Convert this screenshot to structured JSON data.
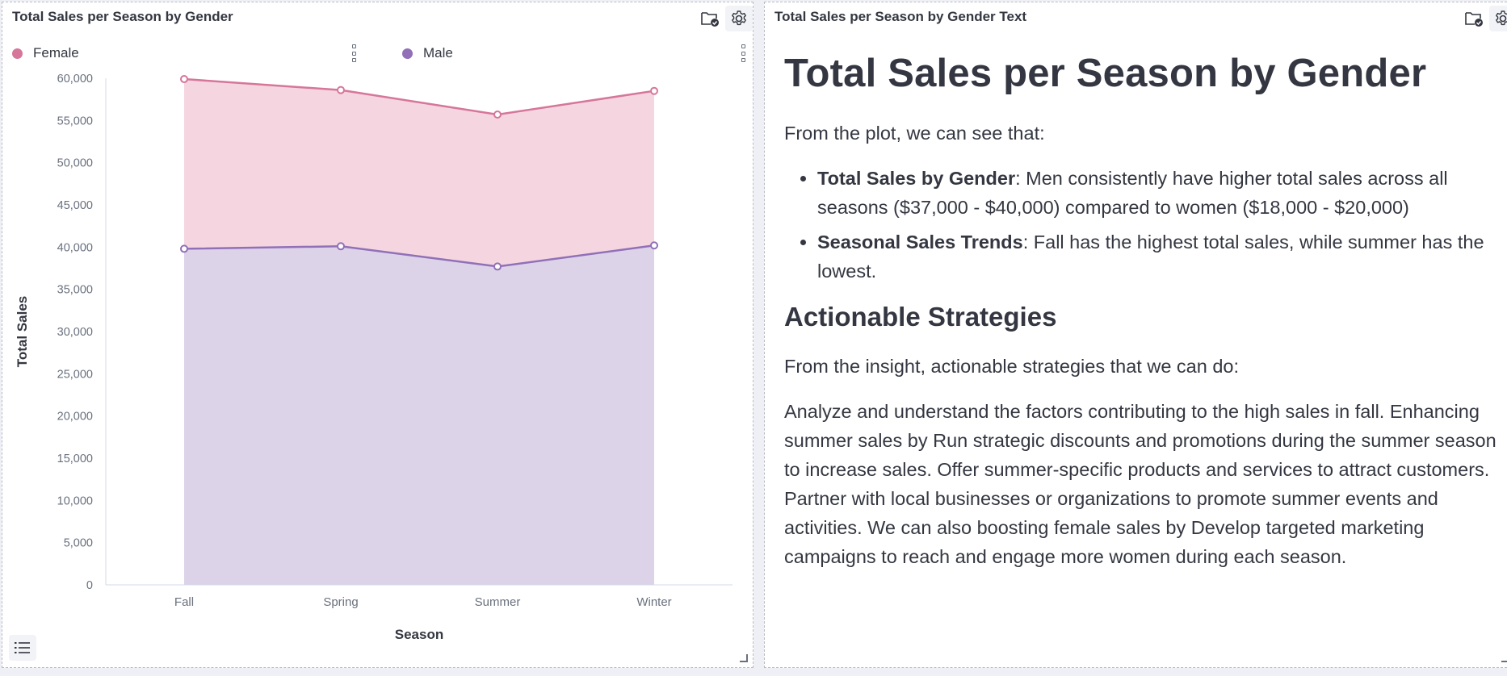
{
  "chart_panel": {
    "title": "Total Sales per Season by Gender"
  },
  "text_panel": {
    "title": "Total Sales per Season by Gender Text",
    "heading": "Total Sales per Season by Gender",
    "intro": "From the plot, we can see that:",
    "bullets": [
      {
        "bold": "Total Sales by Gender",
        "text": ": Men consistently have higher total sales across all seasons ($37,000 - $40,000) compared to women ($18,000 - $20,000)"
      },
      {
        "bold": "Seasonal Sales Trends",
        "text": ": Fall has the highest total sales, while summer has the lowest."
      }
    ],
    "subheading": "Actionable Strategies",
    "strategies_intro": "From the insight, actionable strategies that we can do:",
    "strategies_body": "Analyze and understand the factors contributing to the high sales in fall. Enhancing summer sales by Run strategic discounts and promotions during the summer season to increase sales. Offer summer-specific products and services to attract customers. Partner with local businesses or organizations to promote summer events and activities. We can also boosting female sales by Develop targeted marketing campaigns to reach and engage more women during each season."
  },
  "colors": {
    "female": "#d6769a",
    "female_fill": "#f5d6e0",
    "male": "#9170b8",
    "male_fill": "#ddd3e9",
    "text": "#343741",
    "tick": "#69707d"
  },
  "chart_data": {
    "type": "area",
    "stacked": true,
    "categories": [
      "Fall",
      "Spring",
      "Summer",
      "Winter"
    ],
    "series": [
      {
        "name": "Male",
        "values": [
          39800,
          40100,
          37700,
          40200
        ]
      },
      {
        "name": "Female",
        "values": [
          20100,
          18500,
          18000,
          18300
        ]
      }
    ],
    "xlabel": "Season",
    "ylabel": "Total Sales",
    "ylim": [
      0,
      60000
    ],
    "yticks": [
      "0",
      "5,000",
      "10,000",
      "15,000",
      "20,000",
      "25,000",
      "30,000",
      "35,000",
      "40,000",
      "45,000",
      "50,000",
      "55,000",
      "60,000"
    ],
    "legend": [
      {
        "name": "Female"
      },
      {
        "name": "Male"
      }
    ],
    "legend_position": "top",
    "grid": false
  }
}
